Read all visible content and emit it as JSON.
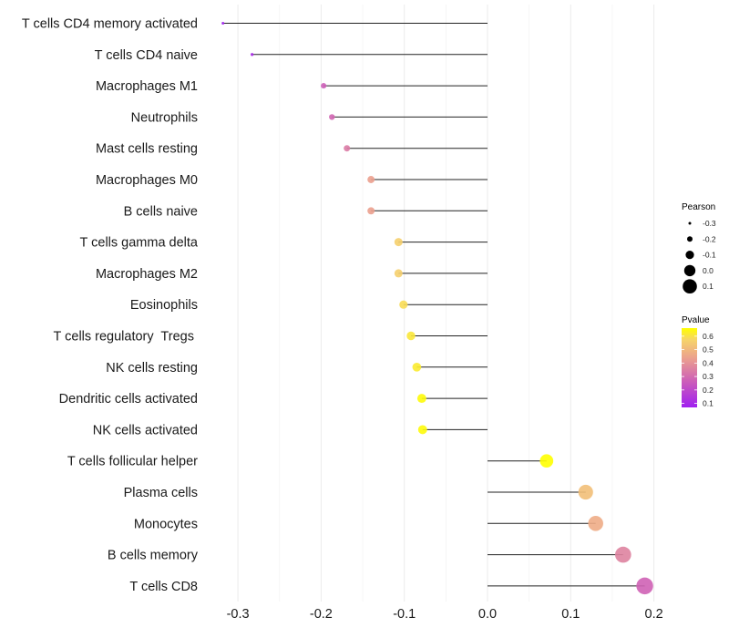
{
  "chart_data": {
    "type": "lollipop",
    "title": "",
    "xlabel": "",
    "ylabel": "",
    "xlim": [
      -0.33,
      0.215
    ],
    "xticks": [
      -0.3,
      -0.2,
      -0.1,
      0.0,
      0.1,
      0.2
    ],
    "xtick_labels": [
      "-0.3",
      "-0.2",
      "-0.1",
      "0.0",
      "0.1",
      "0.2"
    ],
    "grid": true,
    "categories": [
      "T cells CD4 memory activated",
      "T cells CD4 naive",
      "Macrophages M1",
      "Neutrophils",
      "Mast cells resting",
      "Macrophages M0",
      "B cells naive",
      "T cells gamma delta",
      "Macrophages M2",
      "Eosinophils",
      "T cells regulatory  Tregs ",
      "NK cells resting",
      "Dendritic cells activated",
      "NK cells activated",
      "T cells follicular helper",
      "Plasma cells",
      "Monocytes",
      "B cells memory",
      "T cells CD8"
    ],
    "series": [
      {
        "name": "Pearson",
        "values": [
          -0.318,
          -0.283,
          -0.197,
          -0.187,
          -0.169,
          -0.14,
          -0.14,
          -0.107,
          -0.107,
          -0.101,
          -0.092,
          -0.085,
          -0.079,
          -0.078,
          0.071,
          0.118,
          0.13,
          0.163,
          0.189
        ]
      },
      {
        "name": "Pvalue",
        "values": [
          0.07,
          0.1,
          0.26,
          0.28,
          0.33,
          0.42,
          0.42,
          0.54,
          0.54,
          0.57,
          0.6,
          0.61,
          0.65,
          0.65,
          0.66,
          0.5,
          0.45,
          0.35,
          0.27
        ]
      }
    ],
    "legend": {
      "position": "right",
      "size_legend": {
        "title": "Pearson",
        "entries": [
          "-0.3",
          "-0.2",
          "-0.1",
          "0.0",
          "0.1"
        ],
        "values": [
          -0.3,
          -0.2,
          -0.1,
          0.0,
          0.1
        ]
      },
      "color_legend": {
        "title": "Pvalue",
        "ticks": [
          "0.6",
          "0.5",
          "0.4",
          "0.3",
          "0.2",
          "0.1"
        ],
        "tick_values": [
          0.6,
          0.5,
          0.4,
          0.3,
          0.2,
          0.1
        ],
        "range": [
          0.07,
          0.66
        ],
        "low_color": "#A020F0",
        "high_color": "#FFFF00"
      }
    }
  }
}
